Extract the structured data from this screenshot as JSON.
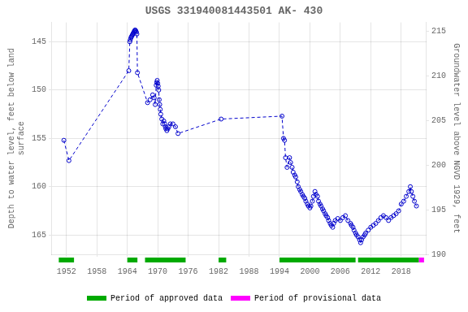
{
  "chart_data": {
    "type": "line",
    "title": "USGS 331940081443501 AK- 430",
    "ylabel": "Depth to water level, feet below land\nsurface",
    "y2label": "Groundwater level above NGVD 1929, feet",
    "x": [
      1951.5,
      1952.5,
      1964.3,
      1964.5,
      1964.6,
      1964.7,
      1964.8,
      1964.9,
      1965.0,
      1965.1,
      1965.2,
      1965.3,
      1965.4,
      1965.5,
      1965.6,
      1965.7,
      1965.8,
      1965.9,
      1966.0,
      1968.0,
      1968.5,
      1969.0,
      1969.3,
      1969.5,
      1969.7,
      1969.8,
      1969.9,
      1970.0,
      1970.1,
      1970.2,
      1970.3,
      1970.4,
      1970.5,
      1970.6,
      1970.8,
      1971.0,
      1971.2,
      1971.4,
      1971.5,
      1971.6,
      1971.8,
      1972.0,
      1972.2,
      1972.5,
      1973.0,
      1973.5,
      1974.0,
      1982.5,
      1994.5,
      1994.8,
      1995.0,
      1995.2,
      1995.5,
      1996.0,
      1996.2,
      1996.5,
      1996.7,
      1997.0,
      1997.2,
      1997.5,
      1997.7,
      1998.0,
      1998.2,
      1998.5,
      1998.7,
      1999.0,
      1999.2,
      1999.5,
      1999.7,
      2000.0,
      2000.2,
      2000.5,
      2000.7,
      2001.0,
      2001.2,
      2001.5,
      2001.7,
      2002.0,
      2002.2,
      2002.5,
      2002.7,
      2003.0,
      2003.2,
      2003.5,
      2003.7,
      2004.0,
      2004.2,
      2004.5,
      2004.7,
      2005.0,
      2005.5,
      2006.0,
      2006.5,
      2007.0,
      2007.5,
      2008.0,
      2008.2,
      2008.5,
      2008.7,
      2009.0,
      2009.2,
      2009.5,
      2009.8,
      2010.0,
      2010.2,
      2010.5,
      2010.8,
      2011.0,
      2011.5,
      2012.0,
      2012.5,
      2013.0,
      2013.5,
      2014.0,
      2014.5,
      2015.0,
      2015.5,
      2016.0,
      2016.5,
      2017.0,
      2017.5,
      2018.0,
      2018.5,
      2019.0,
      2019.5,
      2019.8,
      2020.0,
      2020.3,
      2020.6,
      2021.0
    ],
    "values": [
      155.2,
      157.3,
      148.0,
      145.0,
      144.8,
      144.6,
      144.5,
      144.4,
      144.3,
      144.2,
      144.1,
      144.0,
      143.9,
      143.8,
      143.8,
      143.9,
      144.0,
      144.2,
      148.2,
      151.3,
      151.0,
      150.5,
      150.8,
      151.5,
      149.5,
      149.2,
      149.0,
      149.3,
      149.6,
      150.0,
      151.0,
      151.5,
      152.0,
      152.5,
      153.0,
      153.5,
      153.2,
      153.5,
      153.8,
      154.0,
      154.2,
      154.0,
      153.8,
      153.5,
      153.5,
      153.8,
      154.5,
      153.0,
      152.7,
      155.0,
      155.2,
      157.0,
      158.0,
      157.0,
      157.5,
      158.0,
      158.5,
      158.8,
      159.0,
      159.5,
      160.0,
      160.3,
      160.5,
      160.8,
      161.0,
      161.2,
      161.5,
      161.8,
      162.0,
      162.2,
      162.0,
      161.5,
      161.0,
      160.5,
      160.8,
      161.0,
      161.5,
      161.8,
      162.0,
      162.3,
      162.5,
      162.8,
      163.0,
      163.2,
      163.5,
      163.8,
      164.0,
      164.2,
      163.8,
      163.5,
      163.3,
      163.5,
      163.2,
      163.0,
      163.5,
      163.8,
      164.0,
      164.2,
      164.5,
      164.8,
      165.0,
      165.2,
      165.5,
      165.8,
      165.5,
      165.2,
      165.0,
      164.8,
      164.5,
      164.2,
      164.0,
      163.8,
      163.5,
      163.2,
      163.0,
      163.2,
      163.5,
      163.2,
      163.0,
      162.8,
      162.5,
      161.8,
      161.5,
      161.0,
      160.5,
      160.0,
      160.5,
      161.0,
      161.5,
      162.0
    ],
    "color": "#0000cc",
    "marker": "open_circle",
    "line_style": "dashed",
    "xlim": [
      1949,
      2023
    ],
    "xticks": [
      1952,
      1958,
      1964,
      1970,
      1976,
      1982,
      1988,
      1994,
      2000,
      2006,
      2012,
      2018
    ],
    "ylim": [
      167,
      143
    ],
    "yticks": [
      145,
      150,
      155,
      160,
      165
    ],
    "y2lim": [
      190,
      216
    ],
    "y2ticks": [
      190,
      195,
      200,
      205,
      210,
      215
    ],
    "grid": true,
    "legend": "bottom",
    "periods": [
      {
        "name": "Period of approved data",
        "color": "#00aa00",
        "ranges": [
          [
            1950.5,
            1953.5
          ],
          [
            1964.0,
            1966.0
          ],
          [
            1967.5,
            1975.5
          ],
          [
            1982.0,
            1983.5
          ],
          [
            1994.0,
            2009.0
          ],
          [
            2009.5,
            2021.5
          ]
        ]
      },
      {
        "name": "Period of provisional data",
        "color": "#ff00ff",
        "ranges": [
          [
            2021.5,
            2022.5
          ]
        ]
      }
    ]
  }
}
